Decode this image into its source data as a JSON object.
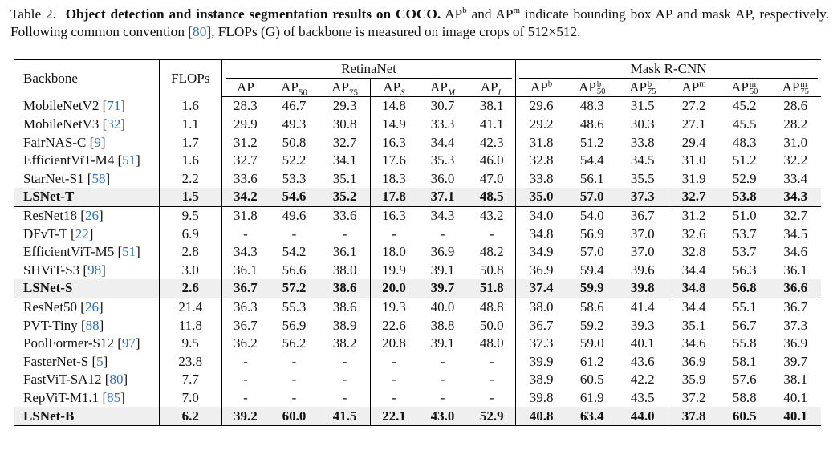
{
  "caption": {
    "label": "Table 2.",
    "title": "Object detection and instance segmentation results on COCO.",
    "text1": " AP",
    "sup_b": "b",
    "text2": " and AP",
    "sup_m": "m",
    "text3": " indicate bounding box AP and mask AP, respectively. Following common convention [",
    "ref": "80",
    "text4": "], FLOPs (G) of backbone is measured on image crops of 512×512."
  },
  "headers": {
    "backbone": "Backbone",
    "flops": "FLOPs",
    "retinanet": "RetinaNet",
    "maskrcnn": "Mask R-CNN",
    "ap": "AP",
    "sub50": "50",
    "sub75": "75",
    "subS": "S",
    "subM": "M",
    "subL": "L",
    "supb": "b",
    "supm": "m"
  },
  "rows": [
    {
      "name": "MobileNetV2 [",
      "ref": "71",
      "close": "]",
      "flops": "1.6",
      "v": [
        "28.3",
        "46.7",
        "29.3",
        "14.8",
        "30.7",
        "38.1",
        "29.6",
        "48.3",
        "31.5",
        "27.2",
        "45.2",
        "28.6"
      ]
    },
    {
      "name": "MobileNetV3 [",
      "ref": "32",
      "close": "]",
      "flops": "1.1",
      "v": [
        "29.9",
        "49.3",
        "30.8",
        "14.9",
        "33.3",
        "41.1",
        "29.2",
        "48.6",
        "30.3",
        "27.1",
        "45.5",
        "28.2"
      ]
    },
    {
      "name": "FairNAS-C [",
      "ref": "9",
      "close": "]",
      "flops": "1.7",
      "v": [
        "31.2",
        "50.8",
        "32.7",
        "16.3",
        "34.4",
        "42.3",
        "31.8",
        "51.2",
        "33.8",
        "29.4",
        "48.3",
        "31.0"
      ]
    },
    {
      "name": "EfficientViT-M4 [",
      "ref": "51",
      "close": "]",
      "flops": "1.6",
      "v": [
        "32.7",
        "52.2",
        "34.1",
        "17.6",
        "35.3",
        "46.0",
        "32.8",
        "54.4",
        "34.5",
        "31.0",
        "51.2",
        "32.2"
      ]
    },
    {
      "name": "StarNet-S1 [",
      "ref": "58",
      "close": "]",
      "flops": "2.2",
      "v": [
        "33.6",
        "53.3",
        "35.1",
        "18.3",
        "36.0",
        "47.0",
        "33.8",
        "56.1",
        "35.5",
        "31.9",
        "52.9",
        "33.4"
      ]
    },
    {
      "name": "LSNet-T",
      "ref": "",
      "close": "",
      "flops": "1.5",
      "v": [
        "34.2",
        "54.6",
        "35.2",
        "17.8",
        "37.1",
        "48.5",
        "35.0",
        "57.0",
        "37.3",
        "32.7",
        "53.8",
        "34.3"
      ]
    },
    {
      "name": "ResNet18 [",
      "ref": "26",
      "close": "]",
      "flops": "9.5",
      "v": [
        "31.8",
        "49.6",
        "33.6",
        "16.3",
        "34.3",
        "43.2",
        "34.0",
        "54.0",
        "36.7",
        "31.2",
        "51.0",
        "32.7"
      ]
    },
    {
      "name": "DFvT-T [",
      "ref": "22",
      "close": "]",
      "flops": "6.9",
      "v": [
        "-",
        "-",
        "-",
        "-",
        "-",
        "-",
        "34.8",
        "56.9",
        "37.0",
        "32.6",
        "53.7",
        "34.5"
      ]
    },
    {
      "name": "EfficientViT-M5 [",
      "ref": "51",
      "close": "]",
      "flops": "2.8",
      "v": [
        "34.3",
        "54.2",
        "36.1",
        "18.0",
        "36.9",
        "48.2",
        "34.9",
        "57.0",
        "37.0",
        "32.8",
        "53.7",
        "34.6"
      ]
    },
    {
      "name": "SHViT-S3 [",
      "ref": "98",
      "close": "]",
      "flops": "3.0",
      "v": [
        "36.1",
        "56.6",
        "38.0",
        "19.9",
        "39.1",
        "50.8",
        "36.9",
        "59.4",
        "39.6",
        "34.4",
        "56.3",
        "36.1"
      ]
    },
    {
      "name": "LSNet-S",
      "ref": "",
      "close": "",
      "flops": "2.6",
      "v": [
        "36.7",
        "57.2",
        "38.6",
        "20.0",
        "39.7",
        "51.8",
        "37.4",
        "59.9",
        "39.8",
        "34.8",
        "56.8",
        "36.6"
      ]
    },
    {
      "name": "ResNet50 [",
      "ref": "26",
      "close": "]",
      "flops": "21.4",
      "v": [
        "36.3",
        "55.3",
        "38.6",
        "19.3",
        "40.0",
        "48.8",
        "38.0",
        "58.6",
        "41.4",
        "34.4",
        "55.1",
        "36.7"
      ]
    },
    {
      "name": "PVT-Tiny [",
      "ref": "88",
      "close": "]",
      "flops": "11.8",
      "v": [
        "36.7",
        "56.9",
        "38.9",
        "22.6",
        "38.8",
        "50.0",
        "36.7",
        "59.2",
        "39.3",
        "35.1",
        "56.7",
        "37.3"
      ]
    },
    {
      "name": "PoolFormer-S12 [",
      "ref": "97",
      "close": "]",
      "flops": "9.5",
      "v": [
        "36.2",
        "56.2",
        "38.2",
        "20.8",
        "39.1",
        "48.0",
        "37.3",
        "59.0",
        "40.1",
        "34.6",
        "55.8",
        "36.9"
      ]
    },
    {
      "name": "FasterNet-S [",
      "ref": "5",
      "close": "]",
      "flops": "23.8",
      "v": [
        "-",
        "-",
        "-",
        "-",
        "-",
        "-",
        "39.9",
        "61.2",
        "43.6",
        "36.9",
        "58.1",
        "39.7"
      ]
    },
    {
      "name": "FastViT-SA12 [",
      "ref": "80",
      "close": "]",
      "flops": "7.7",
      "v": [
        "-",
        "-",
        "-",
        "-",
        "-",
        "-",
        "38.9",
        "60.5",
        "42.2",
        "35.9",
        "57.6",
        "38.1"
      ]
    },
    {
      "name": "RepViT-M1.1 [",
      "ref": "85",
      "close": "]",
      "flops": "7.0",
      "v": [
        "-",
        "-",
        "-",
        "-",
        "-",
        "-",
        "39.8",
        "61.9",
        "43.5",
        "37.2",
        "58.8",
        "40.1"
      ]
    },
    {
      "name": "LSNet-B",
      "ref": "",
      "close": "",
      "flops": "6.2",
      "v": [
        "39.2",
        "60.0",
        "41.5",
        "22.1",
        "43.0",
        "52.9",
        "40.8",
        "63.4",
        "44.0",
        "37.8",
        "60.5",
        "40.1"
      ]
    }
  ]
}
